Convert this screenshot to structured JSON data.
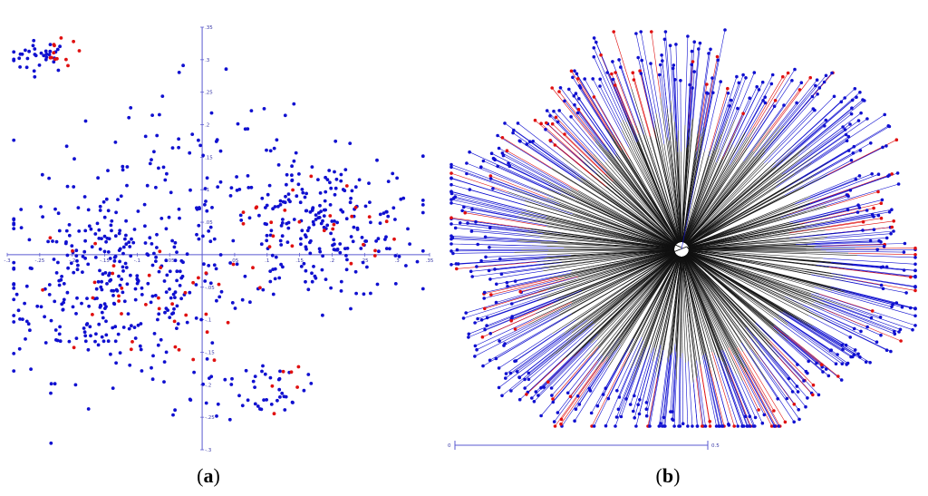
{
  "panels": {
    "a": {
      "label": "(a)",
      "letter": "a"
    },
    "b": {
      "label": "(b)",
      "letter": "b"
    }
  },
  "colors": {
    "blue": "#1010d0",
    "red": "#e01010",
    "axis": "#5a5ad0",
    "branch": "#111111"
  },
  "chart_data": [
    {
      "type": "scatter",
      "panel": "a",
      "xlim": [
        -0.3,
        0.35
      ],
      "ylim": [
        -0.3,
        0.35
      ],
      "x_ticks": [
        {
          "value": -0.3,
          "label": "-.3"
        },
        {
          "value": -0.25,
          "label": "-.25"
        },
        {
          "value": -0.2,
          "label": "-.2"
        },
        {
          "value": -0.15,
          "label": "-.15"
        },
        {
          "value": -0.1,
          "label": "-.1"
        },
        {
          "value": -0.05,
          "label": "-.05"
        },
        {
          "value": 0.05,
          "label": ".05"
        },
        {
          "value": 0.1,
          "label": ".1"
        },
        {
          "value": 0.15,
          "label": ".15"
        },
        {
          "value": 0.2,
          "label": ".2"
        },
        {
          "value": 0.25,
          "label": ".25"
        },
        {
          "value": 0.3,
          "label": ".3"
        },
        {
          "value": 0.35,
          "label": ".35"
        }
      ],
      "y_ticks": [
        {
          "value": 0.35,
          "label": ".35"
        },
        {
          "value": 0.3,
          "label": ".3"
        },
        {
          "value": 0.25,
          "label": ".25"
        },
        {
          "value": 0.2,
          "label": ".2"
        },
        {
          "value": 0.15,
          "label": ".15"
        },
        {
          "value": 0.1,
          "label": ".1"
        },
        {
          "value": 0.05,
          "label": ".05"
        },
        {
          "value": -0.05,
          "label": "-.05"
        },
        {
          "value": -0.1,
          "label": "-.1"
        },
        {
          "value": -0.15,
          "label": "-.15"
        },
        {
          "value": -0.2,
          "label": "-.2"
        },
        {
          "value": -0.25,
          "label": "-.25"
        },
        {
          "value": -0.3,
          "label": "-.3"
        }
      ],
      "series": [
        {
          "color": "blue",
          "clusters": [
            {
              "cx": -0.25,
              "cy": 0.305,
              "sx": 0.025,
              "sy": 0.012,
              "n": 34
            },
            {
              "cx": -0.14,
              "cy": -0.04,
              "sx": 0.09,
              "sy": 0.075,
              "n": 360
            },
            {
              "cx": 0.18,
              "cy": 0.04,
              "sx": 0.08,
              "sy": 0.055,
              "n": 250
            },
            {
              "cx": -0.02,
              "cy": 0.16,
              "sx": 0.1,
              "sy": 0.07,
              "n": 60
            },
            {
              "cx": 0.12,
              "cy": -0.2,
              "sx": 0.02,
              "sy": 0.02,
              "n": 24
            },
            {
              "cx": 0.02,
              "cy": -0.22,
              "sx": 0.06,
              "sy": 0.03,
              "n": 22
            }
          ]
        },
        {
          "color": "red",
          "clusters": [
            {
              "cx": -0.23,
              "cy": 0.31,
              "sx": 0.02,
              "sy": 0.01,
              "n": 12
            },
            {
              "cx": -0.1,
              "cy": -0.07,
              "sx": 0.08,
              "sy": 0.05,
              "n": 40
            },
            {
              "cx": 0.18,
              "cy": 0.05,
              "sx": 0.06,
              "sy": 0.04,
              "n": 26
            },
            {
              "cx": 0.12,
              "cy": -0.2,
              "sx": 0.02,
              "sy": 0.02,
              "n": 6
            }
          ]
        }
      ]
    },
    {
      "type": "tree",
      "panel": "b",
      "scale_bar": {
        "min_label": "0",
        "max_label": "0.5",
        "length": 0.5
      },
      "leaves": {
        "total": 560,
        "red_fraction": 0.17
      }
    }
  ]
}
